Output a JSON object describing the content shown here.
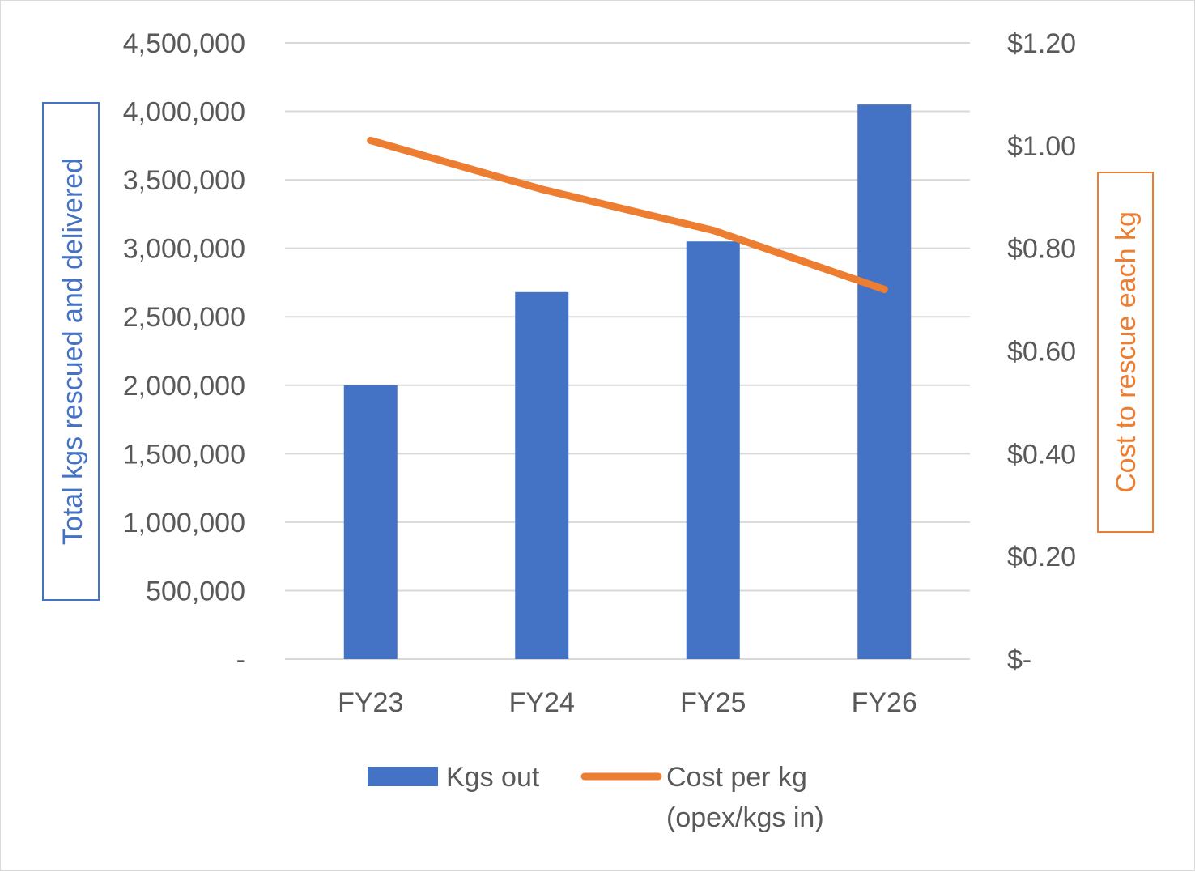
{
  "chart_data": {
    "type": "bar",
    "categories": [
      "FY23",
      "FY24",
      "FY25",
      "FY26"
    ],
    "series": [
      {
        "name": "Kgs out",
        "type": "bar",
        "axis": "left",
        "color": "#4472c4",
        "values": [
          2000000,
          2680000,
          3050000,
          4050000
        ]
      },
      {
        "name": "Cost per kg",
        "name_line2": "(opex/kgs in)",
        "type": "line",
        "axis": "right",
        "color": "#ed7d31",
        "values": [
          1.01,
          0.915,
          0.835,
          0.72
        ]
      }
    ],
    "y_left": {
      "label": "Total kgs rescued and delivered",
      "label_color": "#4472c4",
      "ylim": [
        0,
        4500000
      ],
      "ticks": [
        0,
        500000,
        1000000,
        1500000,
        2000000,
        2500000,
        3000000,
        3500000,
        4000000,
        4500000
      ],
      "tick_labels": [
        "-",
        "500,000",
        "1,000,000",
        "1,500,000",
        "2,000,000",
        "2,500,000",
        "3,000,000",
        "3,500,000",
        "4,000,000",
        "4,500,000"
      ]
    },
    "y_right": {
      "label": "Cost to rescue each kg",
      "label_color": "#ed7d31",
      "ylim": [
        0,
        1.2
      ],
      "ticks": [
        0,
        0.2,
        0.4,
        0.6,
        0.8,
        1.0,
        1.2
      ],
      "tick_labels": [
        "$-",
        "$0.20",
        "$0.40",
        "$0.60",
        "$0.80",
        "$1.00",
        "$1.20"
      ]
    },
    "grid": true,
    "legend_position": "bottom"
  }
}
